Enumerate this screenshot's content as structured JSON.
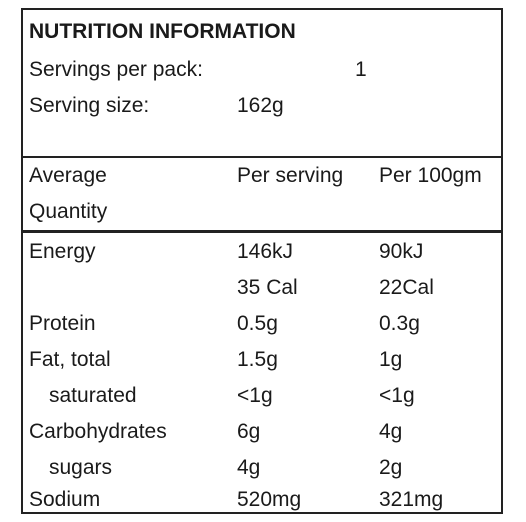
{
  "title": "NUTRITION INFORMATION",
  "servings_per_pack": {
    "label": "Servings per pack:",
    "value": "1"
  },
  "serving_size": {
    "label": "Serving size:",
    "value": "162g"
  },
  "header": {
    "col1_line1": "Average",
    "col1_line2": "Quantity",
    "col2": "Per serving",
    "col3": "Per 100gm"
  },
  "rows": [
    {
      "name": "Energy",
      "per_serving": "146kJ",
      "per_100": "90kJ"
    },
    {
      "name": "",
      "per_serving": "35 Cal",
      "per_100": "22Cal"
    },
    {
      "name": "Protein",
      "per_serving": "0.5g",
      "per_100": "0.3g"
    },
    {
      "name": "Fat, total",
      "per_serving": "1.5g",
      "per_100": "1g"
    },
    {
      "name": "saturated",
      "per_serving": "<1g",
      "per_100": "<1g"
    },
    {
      "name": "Carbohydrates",
      "per_serving": "6g",
      "per_100": "4g"
    },
    {
      "name": "sugars",
      "per_serving": "4g",
      "per_100": "2g"
    },
    {
      "name": "Sodium",
      "per_serving": "520mg",
      "per_100": "321mg"
    }
  ]
}
